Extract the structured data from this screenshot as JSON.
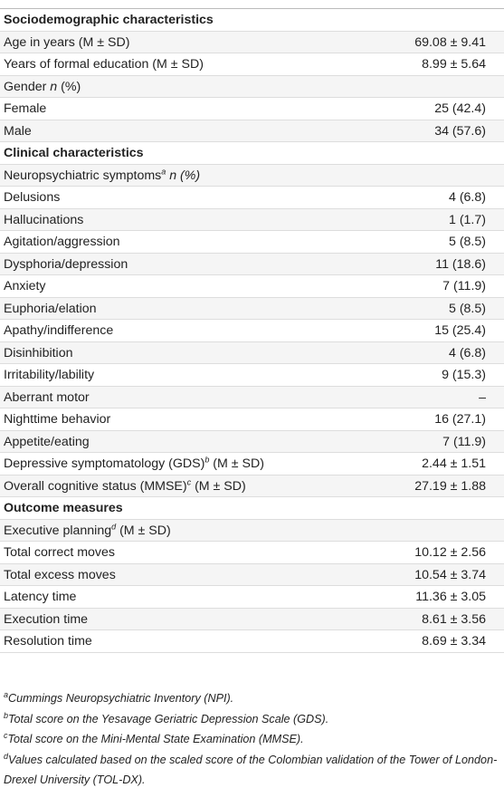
{
  "table": {
    "rows": [
      {
        "heading": "Sociodemographic characteristics"
      },
      {
        "parts": [
          {
            "text": "Age in years (M ± SD)"
          }
        ],
        "value": "69.08 ± 9.41"
      },
      {
        "parts": [
          {
            "text": "Years of formal education (M ± SD)"
          }
        ],
        "value": "8.99 ± 5.64"
      },
      {
        "parts": [
          {
            "text": "Gender "
          },
          {
            "text": "n",
            "italic": true
          },
          {
            "text": " (%)"
          }
        ]
      },
      {
        "parts": [
          {
            "text": "Female"
          }
        ],
        "value": "25 (42.4)"
      },
      {
        "parts": [
          {
            "text": "Male"
          }
        ],
        "value": "34 (57.6)"
      },
      {
        "heading": "Clinical characteristics"
      },
      {
        "parts": [
          {
            "text": "Neuropsychiatric symptoms"
          },
          {
            "text": "a",
            "sup": true
          },
          {
            "text": " n (%)",
            "italic": true
          }
        ]
      },
      {
        "parts": [
          {
            "text": "Delusions"
          }
        ],
        "value": "4 (6.8)"
      },
      {
        "parts": [
          {
            "text": "Hallucinations"
          }
        ],
        "value": "1 (1.7)"
      },
      {
        "parts": [
          {
            "text": "Agitation/aggression"
          }
        ],
        "value": "5 (8.5)"
      },
      {
        "parts": [
          {
            "text": "Dysphoria/depression"
          }
        ],
        "value": "11 (18.6)"
      },
      {
        "parts": [
          {
            "text": "Anxiety"
          }
        ],
        "value": "7 (11.9)"
      },
      {
        "parts": [
          {
            "text": "Euphoria/elation"
          }
        ],
        "value": "5 (8.5)"
      },
      {
        "parts": [
          {
            "text": "Apathy/indifference"
          }
        ],
        "value": "15 (25.4)"
      },
      {
        "parts": [
          {
            "text": "Disinhibition"
          }
        ],
        "value": "4 (6.8)"
      },
      {
        "parts": [
          {
            "text": "Irritability/lability"
          }
        ],
        "value": "9 (15.3)"
      },
      {
        "parts": [
          {
            "text": "Aberrant motor"
          }
        ],
        "value": "–"
      },
      {
        "parts": [
          {
            "text": "Nighttime behavior"
          }
        ],
        "value": "16 (27.1)"
      },
      {
        "parts": [
          {
            "text": "Appetite/eating"
          }
        ],
        "value": "7 (11.9)"
      },
      {
        "parts": [
          {
            "text": "Depressive symptomatology (GDS)"
          },
          {
            "text": "b",
            "sup": true
          },
          {
            "text": " (M ± SD)"
          }
        ],
        "value": "2.44 ± 1.51"
      },
      {
        "parts": [
          {
            "text": "Overall cognitive status (MMSE)"
          },
          {
            "text": "c",
            "sup": true
          },
          {
            "text": " (M ± SD)"
          }
        ],
        "value": "27.19 ± 1.88"
      },
      {
        "heading": "Outcome measures"
      },
      {
        "parts": [
          {
            "text": "Executive planning"
          },
          {
            "text": "d",
            "sup": true
          },
          {
            "text": " (M ± SD)"
          }
        ]
      },
      {
        "parts": [
          {
            "text": "Total correct moves"
          }
        ],
        "value": "10.12 ± 2.56"
      },
      {
        "parts": [
          {
            "text": "Total excess moves"
          }
        ],
        "value": "10.54 ± 3.74"
      },
      {
        "parts": [
          {
            "text": "Latency time"
          }
        ],
        "value": "11.36 ± 3.05"
      },
      {
        "parts": [
          {
            "text": "Execution time"
          }
        ],
        "value": "8.61 ± 3.56"
      },
      {
        "parts": [
          {
            "text": "Resolution time"
          }
        ],
        "value": "8.69 ± 3.34"
      }
    ],
    "footnotes": [
      {
        "mark": "a",
        "text": "Cummings Neuropsychiatric Inventory (NPI)."
      },
      {
        "mark": "b",
        "text": "Total score on the Yesavage Geriatric Depression Scale (GDS)."
      },
      {
        "mark": "c",
        "text": "Total score on the Mini-Mental State Examination (MMSE)."
      },
      {
        "mark": "d",
        "text": "Values calculated based on the scaled score of the Colombian validation of the Tower of London-Drexel University (TOL-DX)."
      }
    ]
  }
}
